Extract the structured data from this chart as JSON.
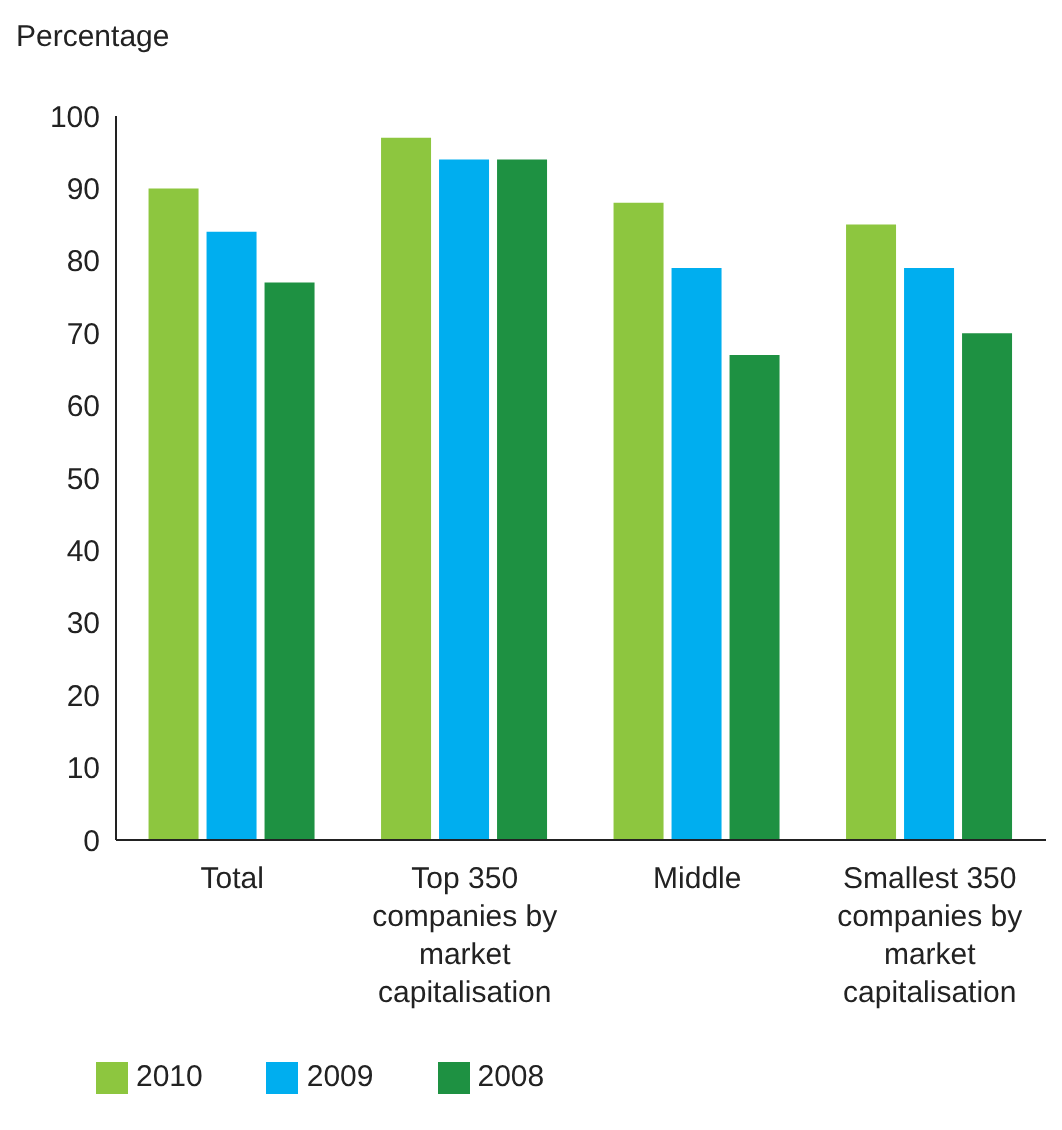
{
  "chart_data": {
    "type": "bar",
    "ylabel": "Percentage",
    "categories": [
      "Total",
      "Top 350 companies by market capitalisation",
      "Middle",
      "Smallest 350 companies by market capitalisation"
    ],
    "series": [
      {
        "name": "2010",
        "color": "#8dc63f",
        "values": [
          90,
          97,
          88,
          85
        ]
      },
      {
        "name": "2009",
        "color": "#00aeef",
        "values": [
          84,
          94,
          79,
          79
        ]
      },
      {
        "name": "2008",
        "color": "#1e9142",
        "values": [
          77,
          94,
          67,
          70
        ]
      }
    ],
    "ylim": [
      0,
      100
    ],
    "yticks": [
      0,
      10,
      20,
      30,
      40,
      50,
      60,
      70,
      80,
      90,
      100
    ],
    "grid": false,
    "legend": "bottom left"
  }
}
